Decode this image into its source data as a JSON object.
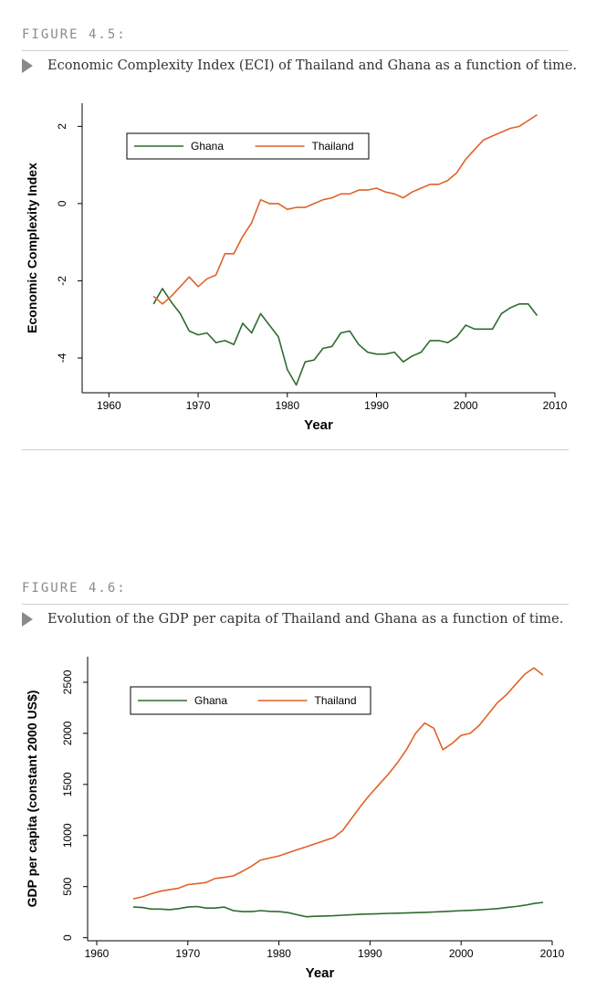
{
  "figures": [
    {
      "label": "FIGURE 4.5:",
      "caption": "Economic Complexity Index (ECI) of Thailand and Ghana as a function of time.",
      "chart_data": {
        "type": "line",
        "xlabel": "Year",
        "ylabel": "Economic Complexity Index",
        "xlim": [
          1957,
          2010
        ],
        "ylim": [
          -4.9,
          2.6
        ],
        "xticks": [
          1960,
          1970,
          1980,
          1990,
          2000,
          2010
        ],
        "yticks": [
          2,
          0,
          -2,
          -4
        ],
        "legend": "top-left",
        "series": [
          {
            "name": "Ghana",
            "color": "#2e6b2e",
            "x": [
              1965,
              1966,
              1967,
              1968,
              1969,
              1970,
              1971,
              1972,
              1973,
              1974,
              1975,
              1976,
              1977,
              1978,
              1979,
              1980,
              1981,
              1982,
              1983,
              1984,
              1985,
              1986,
              1987,
              1988,
              1989,
              1990,
              1991,
              1992,
              1993,
              1994,
              1995,
              1996,
              1997,
              1998,
              1999,
              2000,
              2001,
              2002,
              2003,
              2004,
              2005,
              2006,
              2007,
              2008
            ],
            "y": [
              -2.6,
              -2.2,
              -2.55,
              -2.85,
              -3.3,
              -3.4,
              -3.35,
              -3.6,
              -3.55,
              -3.65,
              -3.1,
              -3.35,
              -2.85,
              -3.15,
              -3.45,
              -4.3,
              -4.7,
              -4.1,
              -4.05,
              -3.75,
              -3.7,
              -3.35,
              -3.3,
              -3.65,
              -3.85,
              -3.9,
              -3.9,
              -3.85,
              -4.1,
              -3.95,
              -3.85,
              -3.55,
              -3.55,
              -3.6,
              -3.45,
              -3.15,
              -3.25,
              -3.25,
              -3.25,
              -2.85,
              -2.7,
              -2.6,
              -2.6,
              -2.9
            ]
          },
          {
            "name": "Thailand",
            "color": "#e0622a",
            "x": [
              1965,
              1966,
              1967,
              1968,
              1969,
              1970,
              1971,
              1972,
              1973,
              1974,
              1975,
              1976,
              1977,
              1978,
              1979,
              1980,
              1981,
              1982,
              1983,
              1984,
              1985,
              1986,
              1987,
              1988,
              1989,
              1990,
              1991,
              1992,
              1993,
              1994,
              1995,
              1996,
              1997,
              1998,
              1999,
              2000,
              2001,
              2002,
              2003,
              2004,
              2005,
              2006,
              2007,
              2008
            ],
            "y": [
              -2.4,
              -2.6,
              -2.4,
              -2.15,
              -1.9,
              -2.15,
              -1.95,
              -1.85,
              -1.3,
              -1.3,
              -0.85,
              -0.5,
              0.1,
              0.0,
              0.0,
              -0.15,
              -0.1,
              -0.1,
              0.0,
              0.1,
              0.15,
              0.25,
              0.25,
              0.35,
              0.35,
              0.4,
              0.3,
              0.25,
              0.15,
              0.3,
              0.4,
              0.5,
              0.5,
              0.6,
              0.8,
              1.15,
              1.4,
              1.65,
              1.75,
              1.85,
              1.95,
              2.0,
              2.15,
              2.3
            ]
          }
        ]
      }
    },
    {
      "label": "FIGURE 4.6:",
      "caption": "Evolution of the GDP per capita of Thailand and Ghana as a function of time.",
      "chart_data": {
        "type": "line",
        "xlabel": "Year",
        "ylabel": "GDP per capita (constant 2000 US$)",
        "xlim": [
          1959,
          2010
        ],
        "ylim": [
          -30,
          2750
        ],
        "xticks": [
          1960,
          1970,
          1980,
          1990,
          2000,
          2010
        ],
        "yticks": [
          2500,
          2000,
          1500,
          1000,
          500,
          0
        ],
        "legend": "top-left",
        "series": [
          {
            "name": "Ghana",
            "color": "#2e6b2e",
            "x": [
              1964,
              1965,
              1966,
              1967,
              1968,
              1969,
              1970,
              1971,
              1972,
              1973,
              1974,
              1975,
              1976,
              1977,
              1978,
              1979,
              1980,
              1981,
              1982,
              1983,
              1984,
              1985,
              1986,
              1987,
              1988,
              1989,
              1990,
              1991,
              1992,
              1993,
              1994,
              1995,
              1996,
              1997,
              1998,
              1999,
              2000,
              2001,
              2002,
              2003,
              2004,
              2005,
              2006,
              2007,
              2008,
              2009
            ],
            "y": [
              300,
              295,
              280,
              280,
              275,
              285,
              300,
              305,
              290,
              290,
              300,
              265,
              255,
              255,
              265,
              258,
              255,
              245,
              225,
              205,
              210,
              212,
              215,
              220,
              225,
              230,
              232,
              235,
              238,
              240,
              242,
              245,
              248,
              252,
              255,
              260,
              265,
              268,
              272,
              278,
              285,
              295,
              305,
              318,
              335,
              345
            ]
          },
          {
            "name": "Thailand",
            "color": "#e0622a",
            "x": [
              1964,
              1965,
              1966,
              1967,
              1968,
              1969,
              1970,
              1971,
              1972,
              1973,
              1974,
              1975,
              1976,
              1977,
              1978,
              1979,
              1980,
              1981,
              1982,
              1983,
              1984,
              1985,
              1986,
              1987,
              1988,
              1989,
              1990,
              1991,
              1992,
              1993,
              1994,
              1995,
              1996,
              1997,
              1998,
              1999,
              2000,
              2001,
              2002,
              2003,
              2004,
              2005,
              2006,
              2007,
              2008,
              2009
            ],
            "y": [
              380,
              400,
              430,
              455,
              470,
              485,
              520,
              530,
              540,
              580,
              590,
              605,
              650,
              700,
              760,
              780,
              800,
              830,
              860,
              890,
              920,
              950,
              980,
              1050,
              1170,
              1290,
              1400,
              1500,
              1600,
              1710,
              1840,
              2000,
              2100,
              2050,
              1840,
              1900,
              1980,
              2000,
              2080,
              2190,
              2300,
              2380,
              2480,
              2580,
              2640,
              2570
            ]
          }
        ]
      }
    }
  ]
}
